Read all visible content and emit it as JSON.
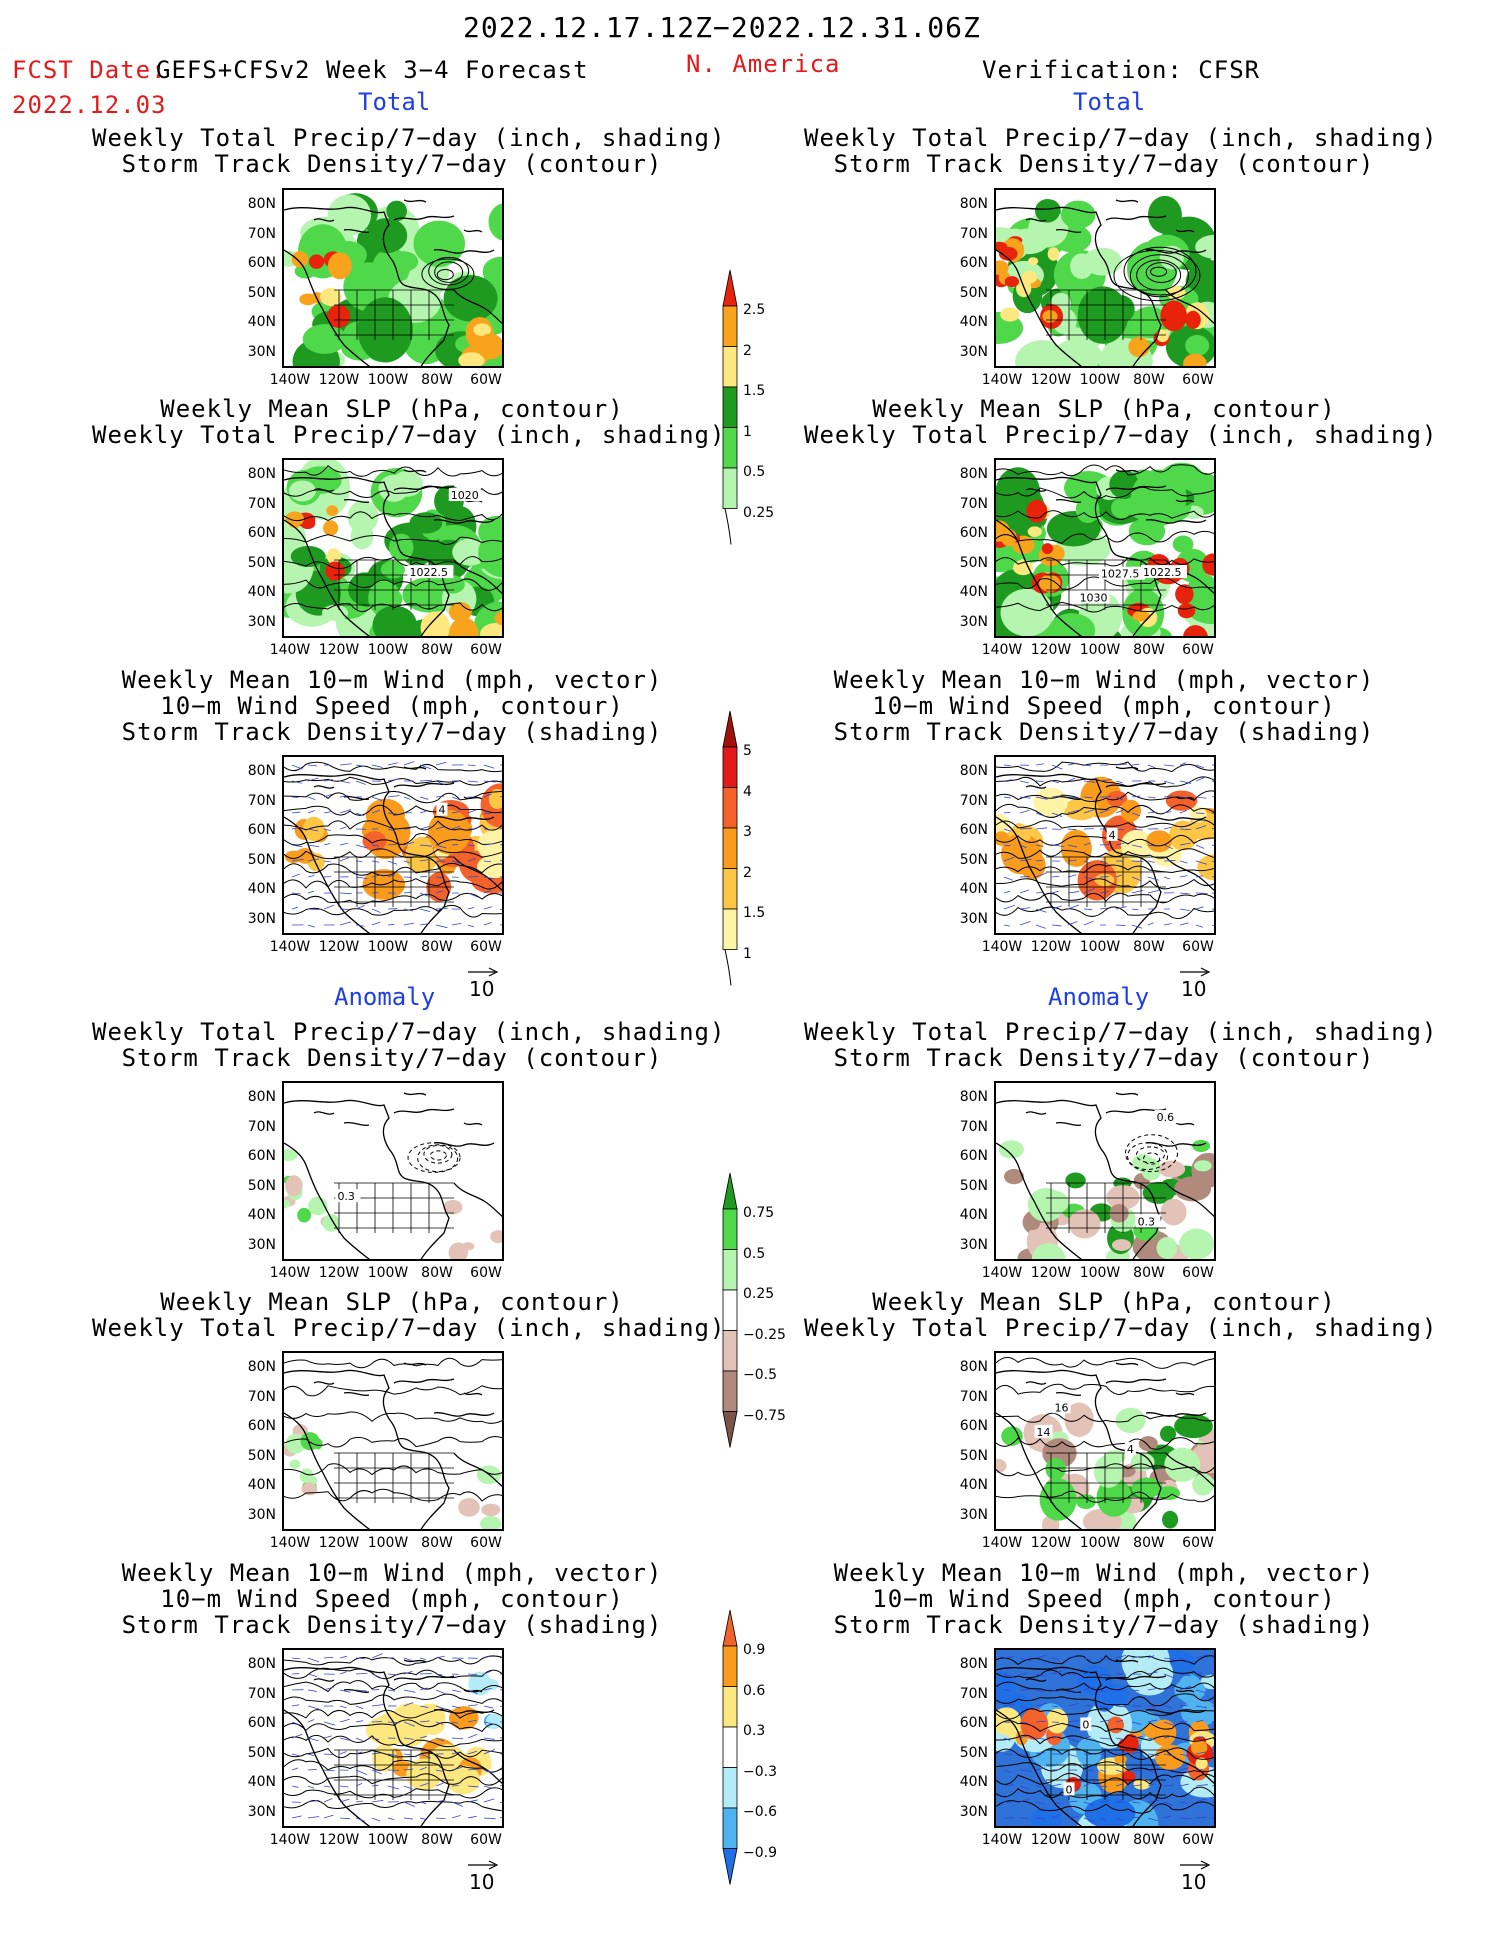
{
  "header": {
    "date_range": "2022.12.17.12Z−2022.12.31.06Z",
    "fcst_label": "FCST Date:",
    "fcst_model": "GEFS+CFSv2 Week 3−4 Forecast",
    "fcst_date": "2022.12.03",
    "region": "N. America",
    "verification": "Verification: CFSR"
  },
  "sections": {
    "total": "Total",
    "anomaly": "Anomaly"
  },
  "titles": {
    "precip_storm": [
      "Weekly Total Precip/7−day (inch, shading)",
      "Storm Track Density/7−day (contour)"
    ],
    "slp_precip": [
      "Weekly Mean SLP (hPa, contour)",
      "Weekly Total Precip/7−day (inch, shading)"
    ],
    "wind_storm": [
      "Weekly Mean 10−m Wind (mph, vector)",
      "10−m Wind Speed (mph, contour)",
      "Storm Track Density/7−day (shading)"
    ]
  },
  "axes": {
    "lat_ticks": [
      "80N",
      "70N",
      "60N",
      "50N",
      "40N",
      "30N"
    ],
    "lon_ticks": [
      "140W",
      "120W",
      "100W",
      "80W",
      "60W"
    ]
  },
  "vector_reference": "10",
  "contour_labels": {
    "fcst_slp_total": [
      "1022.5",
      "1020"
    ],
    "cfsr_slp_total": [
      "1030",
      "1027.5",
      "1022.5"
    ],
    "fcst_wind_total": [
      "4"
    ],
    "cfsr_wind_total": [
      "4"
    ],
    "fcst_precip_anom": [
      "0.3"
    ],
    "cfsr_precip_anom": [
      "0.3",
      "0.6"
    ],
    "cfsr_slp_anom": [
      "14",
      "16",
      "4"
    ],
    "cfsr_wind_anom": [
      "0",
      "0"
    ]
  },
  "colorbars": {
    "precip_total": {
      "labels": [
        "2.5",
        "2",
        "1.5",
        "1",
        "0.5",
        "0.25"
      ],
      "colors": [
        "#e8230c",
        "#f7a31c",
        "#fde880",
        "#1f9a21",
        "#4fd94a",
        "#b6f5b0"
      ]
    },
    "storm_total": {
      "labels": [
        "5",
        "4",
        "3",
        "2",
        "1.5",
        "1"
      ],
      "colors": [
        "#a11208",
        "#e31a1c",
        "#f4622c",
        "#f99c1d",
        "#fdc645",
        "#fff3a6"
      ]
    },
    "precip_anom": {
      "labels": [
        "0.75",
        "0.5",
        "0.25",
        "−0.25",
        "−0.5",
        "−0.75"
      ],
      "colors": [
        "#1f9a21",
        "#4fd94a",
        "#b6f5b0",
        "#ffffff",
        "#e3c2b7",
        "#b08a7c",
        "#7a5446"
      ]
    },
    "storm_anom": {
      "labels": [
        "0.9",
        "0.6",
        "0.3",
        "−0.3",
        "−0.6",
        "−0.9"
      ],
      "colors": [
        "#f4622c",
        "#f99c1d",
        "#fde880",
        "#ffffff",
        "#b3ecf7",
        "#4fb3f0",
        "#1f6fe6"
      ]
    }
  },
  "colors": {
    "header_red": "#e31a1c",
    "section_blue": "#1f3fe6"
  }
}
